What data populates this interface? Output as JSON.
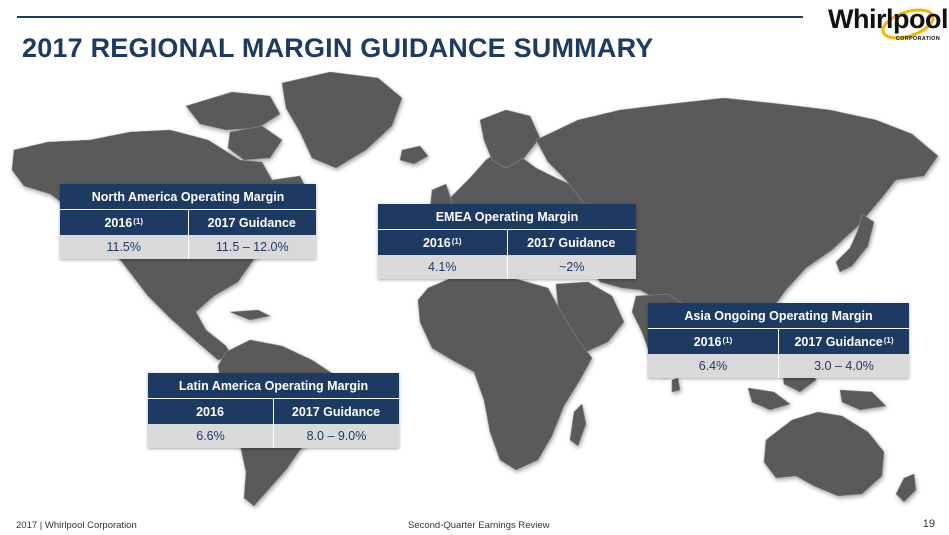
{
  "slide": {
    "title": "2017 REGIONAL MARGIN GUIDANCE SUMMARY"
  },
  "logo": {
    "name": "Whirlpool",
    "sub": "CORPORATION"
  },
  "cards": {
    "north_america": {
      "header": "North America Operating Margin",
      "col1": "2016",
      "col1_note": "(1)",
      "col2": "2017 Guidance",
      "col2_note": "",
      "val1": "11.5%",
      "val2": "11.5 – 12.0%"
    },
    "emea": {
      "header": "EMEA Operating Margin",
      "col1": "2016",
      "col1_note": "(1)",
      "col2": "2017 Guidance",
      "col2_note": "",
      "val1": "4.1%",
      "val2": "~2%"
    },
    "asia": {
      "header": "Asia Ongoing Operating Margin",
      "col1": "2016",
      "col1_note": "(1)",
      "col2": "2017 Guidance",
      "col2_note": "(1)",
      "val1": "6.4%",
      "val2": "3.0 – 4.0%"
    },
    "latin_america": {
      "header": "Latin America Operating Margin",
      "col1": "2016",
      "col1_note": "",
      "col2": "2017 Guidance",
      "col2_note": "",
      "val1": "6.6%",
      "val2": "8.0 – 9.0%"
    }
  },
  "footer": {
    "left": "2017 | Whirlpool Corporation",
    "center": "Second-Quarter Earnings Review",
    "page": "19"
  },
  "colors": {
    "navy": "#1d3a63",
    "map_land": "#5a5a5a",
    "value_bg": "#d9d9d9",
    "logo_swoosh": "#f2b500"
  }
}
